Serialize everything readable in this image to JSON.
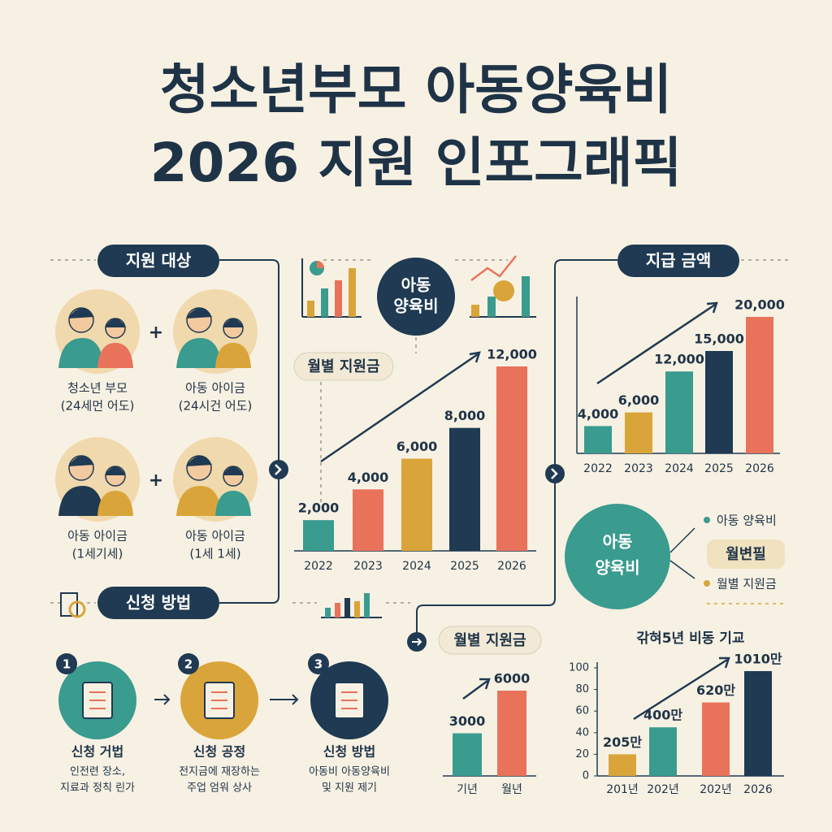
{
  "title": {
    "lines": [
      "청소년부모 아동양육비",
      "2026 지원 인포그래픽"
    ]
  },
  "sections": {
    "target": "지원 대상",
    "apply": "신청 방법"
  },
  "badges": {
    "center": [
      "아동",
      "양육비"
    ],
    "right": [
      "아동",
      "양육비"
    ]
  },
  "targets": [
    {
      "name": "청소년 부모",
      "note": "(24세먼 어도)"
    },
    {
      "name": "아동 아이금",
      "note": "(24시건 어도)"
    },
    {
      "name": "아동 아이금",
      "note": "(1세기세)"
    },
    {
      "name": "아동 아이금",
      "note": "(1세 1세)"
    }
  ],
  "steps": [
    {
      "number": "1",
      "title": "신청 거법",
      "desc": [
        "인전련 장소,",
        "지료과 정칙 린가"
      ]
    },
    {
      "number": "2",
      "title": "신청 공정",
      "desc": [
        "전지금에 재장하는",
        "주업 엄워 상사"
      ]
    },
    {
      "number": "3",
      "title": "신청 방법",
      "desc": [
        "아동비 아동양육비",
        "및 지원 제기"
      ]
    }
  ],
  "legend": {
    "items": [
      "아동 양육비",
      "월별 지원금"
    ],
    "highlight": "월변필"
  },
  "chart_data": [
    {
      "type": "bar",
      "title": "월별 지원금",
      "categories": [
        "2022",
        "2023",
        "2024",
        "2025",
        "2026"
      ],
      "values": [
        2000,
        4000,
        6000,
        8000,
        12000
      ],
      "value_labels": [
        "2,000",
        "4,000",
        "6,000",
        "8,000",
        "12,000"
      ],
      "colors": [
        "#3a9b8f",
        "#e8735a",
        "#d9a53a",
        "#1f3a52",
        "#e8735a"
      ]
    },
    {
      "type": "bar",
      "title": "지급 금액",
      "categories": [
        "2022",
        "2023",
        "2024",
        "2025",
        "2026"
      ],
      "values": [
        4000,
        6000,
        12000,
        15000,
        20000
      ],
      "value_labels": [
        "4,000",
        "6,000",
        "12,000",
        "15,000",
        "20,000"
      ],
      "colors": [
        "#3a9b8f",
        "#d9a53a",
        "#3a9b8f",
        "#1f3a52",
        "#e8735a"
      ]
    },
    {
      "type": "bar",
      "title": "월별 지원금",
      "categories": [
        "기년",
        "월년"
      ],
      "values": [
        3000,
        6000
      ],
      "colors": [
        "#3a9b8f",
        "#e8735a"
      ]
    },
    {
      "type": "bar",
      "title": "갂혀5년 비동 기교",
      "categories": [
        "201년",
        "202년",
        "202년",
        "2026"
      ],
      "values": [
        20,
        45,
        68,
        97
      ],
      "annotations": [
        "205만",
        "400만",
        "620만",
        "1010만"
      ],
      "ylim": [
        0,
        100
      ],
      "yticks": [
        0,
        20,
        40,
        60,
        80,
        100
      ],
      "colors": [
        "#d9a53a",
        "#3a9b8f",
        "#e8735a",
        "#1f3a52"
      ]
    }
  ]
}
